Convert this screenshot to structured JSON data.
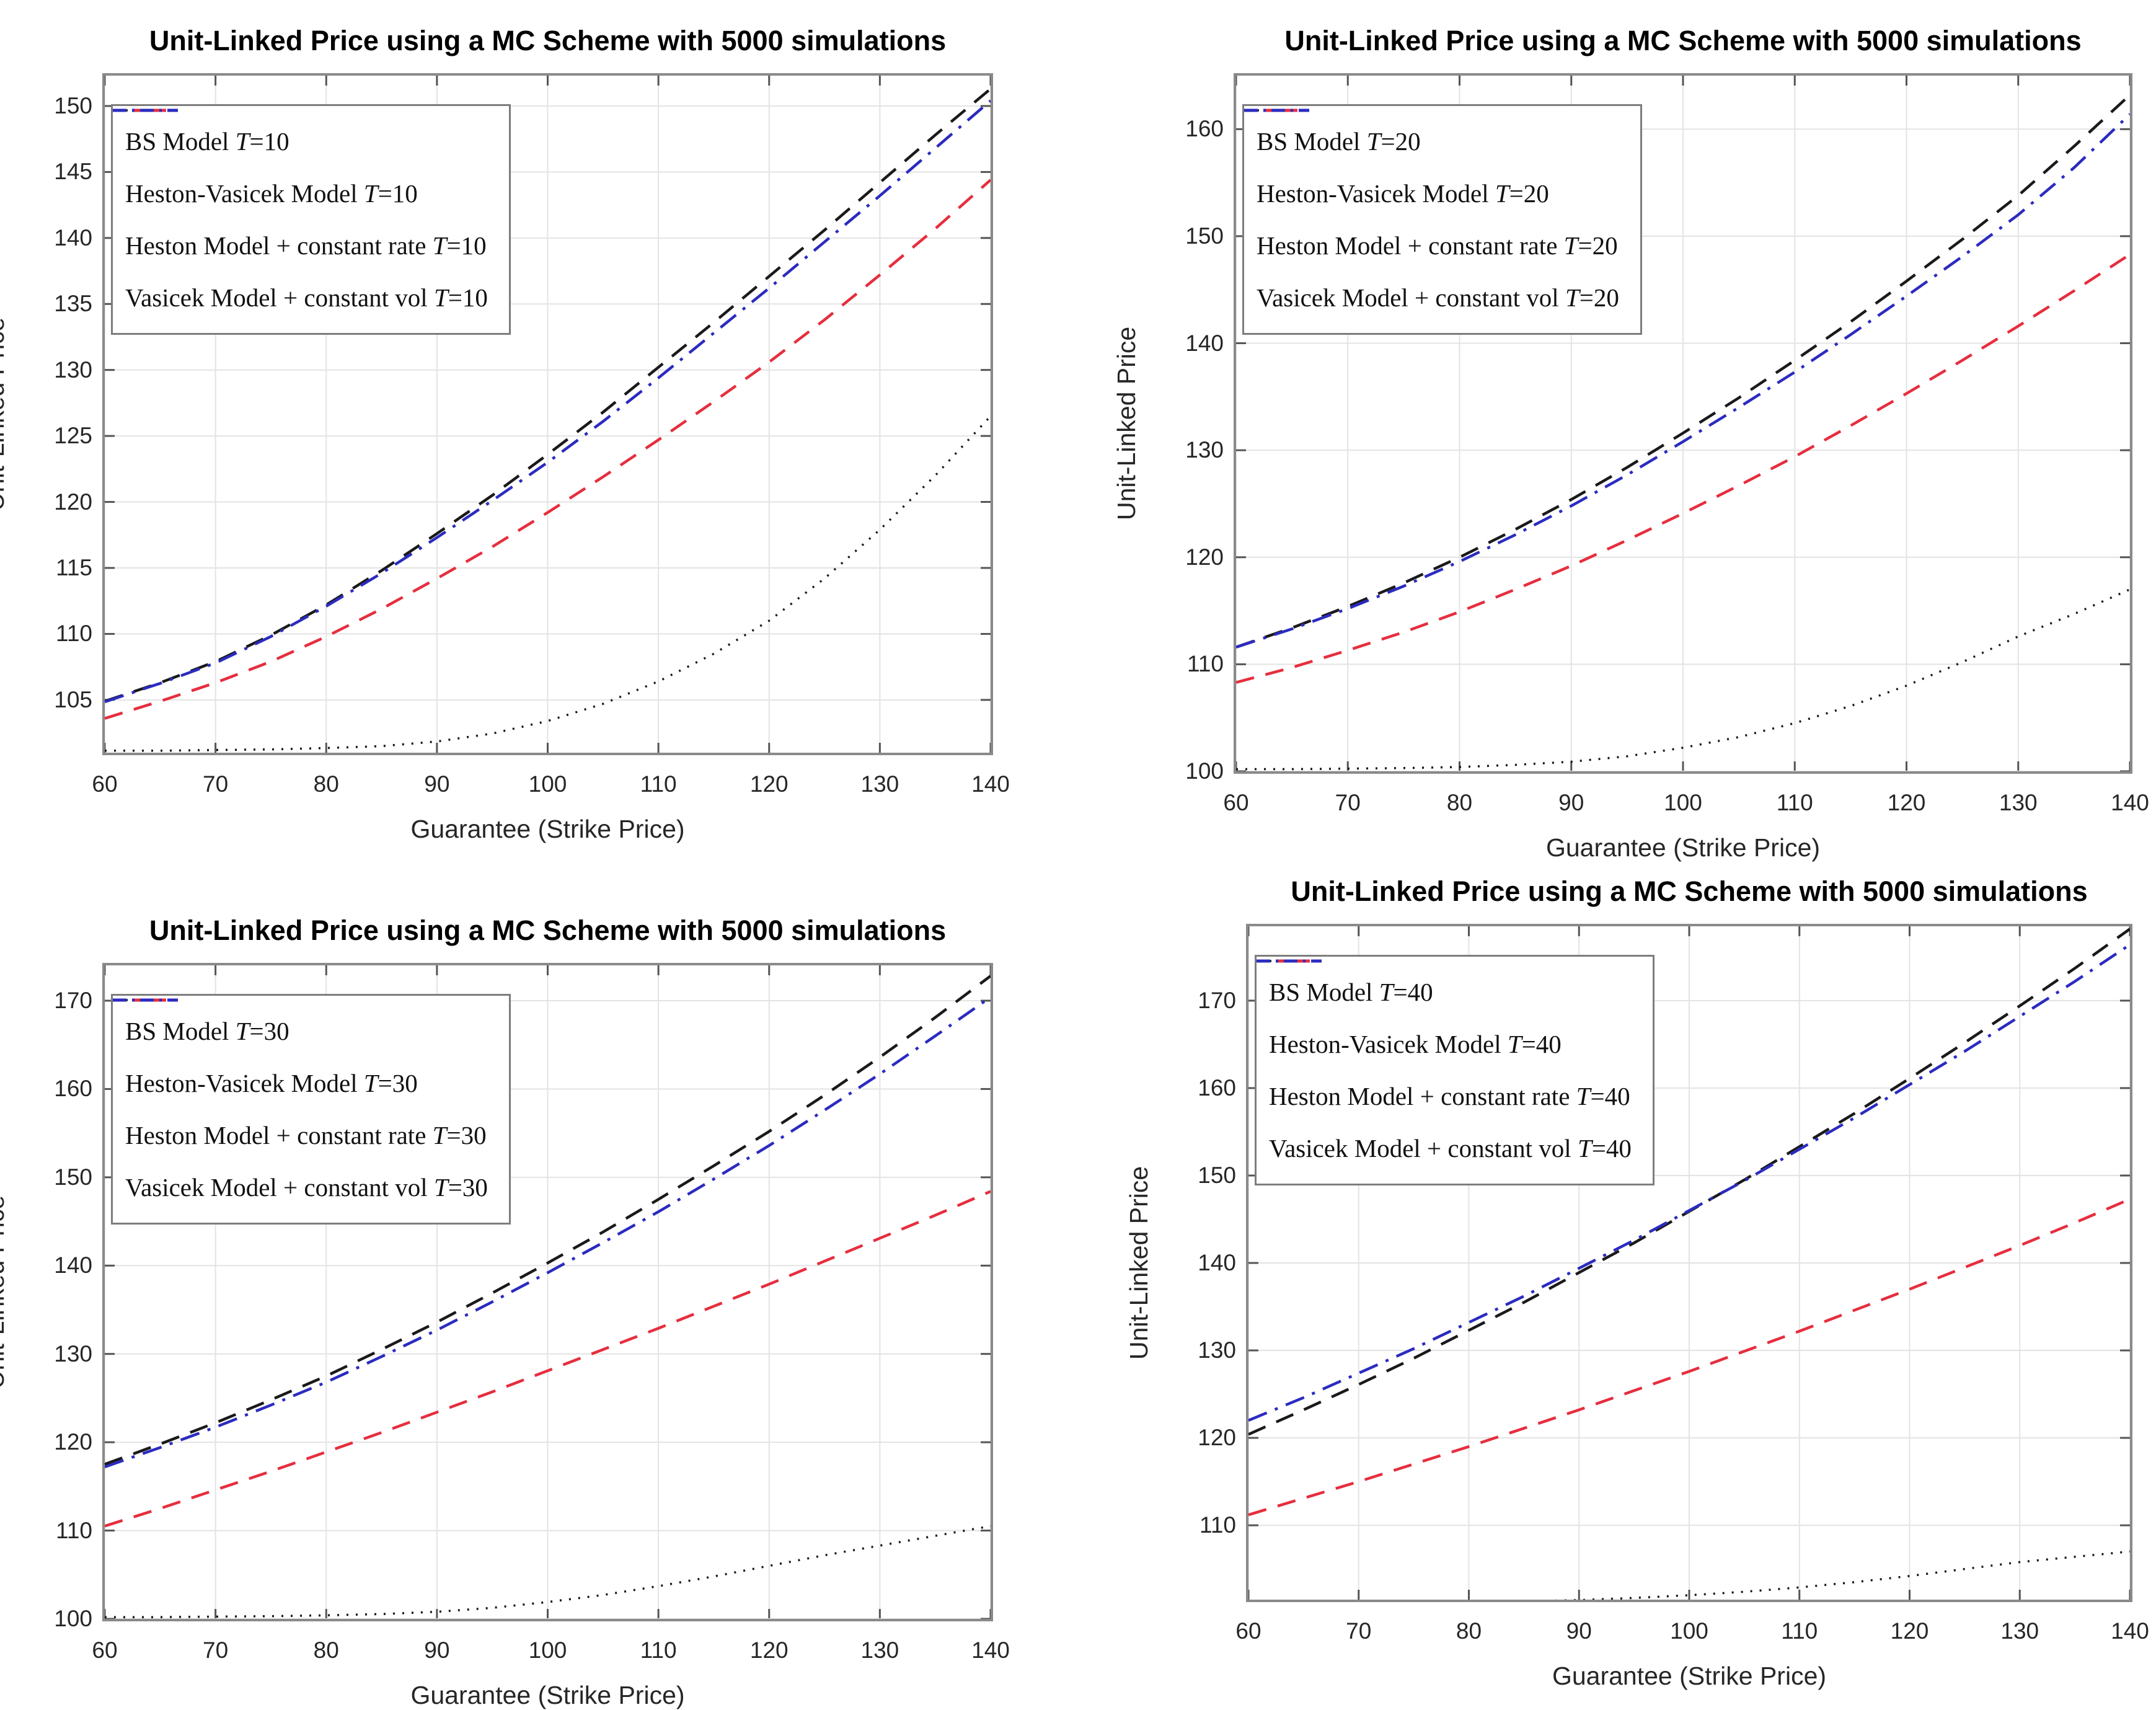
{
  "page": {
    "background": "#ffffff"
  },
  "colors": {
    "bs": "#1a1a1a",
    "heston_vasicek": "#1a1a1a",
    "heston": "#e62e3e",
    "vasicek": "#2b2bc0",
    "grid": "#e3e3e3",
    "axis_box": "#8a8a8a",
    "tick_mark": "#555555",
    "tick_label": "#262626"
  },
  "chart_data": [
    {
      "type": "line",
      "title": "Unit-Linked Price using a MC Scheme with 5000 simulations",
      "xlabel": "Guarantee (Strike Price)",
      "ylabel": "Unit-Linked Price",
      "xlim": [
        60,
        140
      ],
      "ylim": [
        101,
        152.3
      ],
      "xticks": [
        60,
        70,
        80,
        90,
        100,
        110,
        120,
        130,
        140
      ],
      "yticks": [
        105,
        110,
        115,
        120,
        125,
        130,
        135,
        140,
        145,
        150
      ],
      "grid": true,
      "legend_position": "top-left",
      "x": [
        60,
        65,
        70,
        75,
        80,
        85,
        90,
        95,
        100,
        105,
        110,
        115,
        120,
        125,
        130,
        135,
        140
      ],
      "series": [
        {
          "name": "BS Model T=10",
          "style": "dotted",
          "color_key": "bs",
          "values": [
            101.15,
            101.15,
            101.2,
            101.25,
            101.35,
            101.5,
            101.85,
            102.45,
            103.4,
            104.7,
            106.4,
            108.5,
            111.0,
            114.2,
            117.9,
            122.0,
            126.5
          ]
        },
        {
          "name": "Heston-Vasicek Model T=10",
          "style": "dashed",
          "color_key": "heston_vasicek",
          "values": [
            104.9,
            106.3,
            107.9,
            109.9,
            112.2,
            114.8,
            117.6,
            120.5,
            123.6,
            126.8,
            130.2,
            133.6,
            137.1,
            140.6,
            144.2,
            147.8,
            151.3
          ]
        },
        {
          "name": "Heston Model + constant rate T=10",
          "style": "dashed",
          "color_key": "heston",
          "values": [
            103.6,
            104.9,
            106.3,
            107.9,
            109.8,
            111.9,
            114.2,
            116.6,
            119.2,
            121.9,
            124.7,
            127.6,
            130.6,
            133.8,
            137.2,
            140.7,
            144.4
          ]
        },
        {
          "name": "Vasicek Model + constant vol T=10",
          "style": "dashdot",
          "color_key": "vasicek",
          "values": [
            104.85,
            106.25,
            107.8,
            109.8,
            112.1,
            114.6,
            117.3,
            120.1,
            123.0,
            126.1,
            129.4,
            132.8,
            136.2,
            139.7,
            143.2,
            146.8,
            150.4
          ]
        }
      ]
    },
    {
      "type": "line",
      "title": "Unit-Linked Price using a MC Scheme with 5000 simulations",
      "xlabel": "Guarantee (Strike Price)",
      "ylabel": "Unit-Linked Price",
      "xlim": [
        60,
        140
      ],
      "ylim": [
        100,
        165
      ],
      "xticks": [
        60,
        70,
        80,
        90,
        100,
        110,
        120,
        130,
        140
      ],
      "yticks": [
        100,
        110,
        120,
        130,
        140,
        150,
        160
      ],
      "grid": true,
      "legend_position": "top-left",
      "x": [
        60,
        65,
        70,
        75,
        80,
        85,
        90,
        95,
        100,
        105,
        110,
        115,
        120,
        125,
        130,
        135,
        140
      ],
      "series": [
        {
          "name": "BS Model T=20",
          "style": "dotted",
          "color_key": "bs",
          "values": [
            100.2,
            100.2,
            100.25,
            100.3,
            100.4,
            100.6,
            100.9,
            101.4,
            102.2,
            103.2,
            104.5,
            106.1,
            108.0,
            110.2,
            112.6,
            114.7,
            117.0
          ]
        },
        {
          "name": "Heston-Vasicek Model T=20",
          "style": "dashed",
          "color_key": "heston_vasicek",
          "values": [
            111.6,
            113.4,
            115.4,
            117.6,
            120.0,
            122.6,
            125.4,
            128.4,
            131.6,
            134.9,
            138.4,
            142.0,
            145.8,
            149.7,
            153.8,
            158.4,
            163.2
          ]
        },
        {
          "name": "Heston Model + constant rate T=20",
          "style": "dashed",
          "color_key": "heston",
          "values": [
            108.3,
            109.7,
            111.3,
            113.0,
            114.9,
            117.0,
            119.2,
            121.6,
            124.1,
            126.7,
            129.4,
            132.3,
            135.3,
            138.4,
            141.6,
            144.9,
            148.3
          ]
        },
        {
          "name": "Vasicek Model + constant vol T=20",
          "style": "dashdot",
          "color_key": "vasicek",
          "values": [
            111.6,
            113.3,
            115.2,
            117.3,
            119.6,
            122.1,
            124.8,
            127.7,
            130.8,
            134.0,
            137.3,
            140.8,
            144.4,
            148.1,
            152.0,
            156.4,
            161.4
          ]
        }
      ]
    },
    {
      "type": "line",
      "title": "Unit-Linked Price using a MC Scheme with 5000 simulations",
      "xlabel": "Guarantee (Strike Price)",
      "ylabel": "Unit-Linked Price",
      "xlim": [
        60,
        140
      ],
      "ylim": [
        100,
        174
      ],
      "xticks": [
        60,
        70,
        80,
        90,
        100,
        110,
        120,
        130,
        140
      ],
      "yticks": [
        100,
        110,
        120,
        130,
        140,
        150,
        160,
        170
      ],
      "grid": true,
      "legend_position": "top-left",
      "x": [
        60,
        65,
        70,
        75,
        80,
        85,
        90,
        95,
        100,
        105,
        110,
        115,
        120,
        125,
        130,
        135,
        140
      ],
      "series": [
        {
          "name": "BS Model T=30",
          "style": "dotted",
          "color_key": "bs",
          "values": [
            100.2,
            100.2,
            100.25,
            100.3,
            100.4,
            100.55,
            100.8,
            101.25,
            101.9,
            102.7,
            103.7,
            104.8,
            106.0,
            107.2,
            108.3,
            109.4,
            110.5
          ]
        },
        {
          "name": "Heston-Vasicek Model T=30",
          "style": "dashed",
          "color_key": "heston_vasicek",
          "values": [
            117.5,
            119.8,
            122.2,
            124.8,
            127.5,
            130.5,
            133.6,
            136.9,
            140.3,
            143.8,
            147.5,
            151.3,
            155.2,
            159.3,
            163.6,
            168.1,
            172.8
          ]
        },
        {
          "name": "Heston Model + constant rate T=30",
          "style": "dashed",
          "color_key": "heston",
          "values": [
            110.5,
            112.5,
            114.6,
            116.7,
            118.9,
            121.1,
            123.4,
            125.7,
            128.1,
            130.5,
            132.9,
            135.4,
            137.9,
            140.5,
            143.1,
            145.7,
            148.4
          ]
        },
        {
          "name": "Vasicek Model + constant vol T=30",
          "style": "dashdot",
          "color_key": "vasicek",
          "values": [
            117.2,
            119.4,
            121.7,
            124.2,
            126.8,
            129.7,
            132.7,
            135.9,
            139.2,
            142.6,
            146.1,
            149.8,
            153.6,
            157.6,
            161.7,
            166.0,
            170.4
          ]
        }
      ]
    },
    {
      "type": "line",
      "title": "Unit-Linked Price using a MC Scheme with 5000 simulations",
      "xlabel": "Guarantee (Strike Price)",
      "ylabel": "Unit-Linked Price",
      "xlim": [
        60,
        140
      ],
      "ylim": [
        101.5,
        178.5
      ],
      "xticks": [
        60,
        70,
        80,
        90,
        100,
        110,
        120,
        130,
        140
      ],
      "yticks": [
        110,
        120,
        130,
        140,
        150,
        160,
        170
      ],
      "grid": true,
      "legend_position": "top-left",
      "x": [
        60,
        65,
        70,
        75,
        80,
        85,
        90,
        95,
        100,
        105,
        110,
        115,
        120,
        125,
        130,
        135,
        140
      ],
      "series": [
        {
          "name": "BS Model T=40",
          "style": "dotted",
          "color_key": "bs",
          "values": [
            101.3,
            101.25,
            101.2,
            101.2,
            101.25,
            101.3,
            101.45,
            101.7,
            102.0,
            102.4,
            102.9,
            103.5,
            104.2,
            105.0,
            105.8,
            106.4,
            107.0
          ]
        },
        {
          "name": "Heston-Vasicek Model T=40",
          "style": "dashed",
          "color_key": "heston_vasicek",
          "values": [
            120.4,
            123.2,
            126.1,
            129.1,
            132.3,
            135.5,
            138.9,
            142.3,
            145.9,
            149.5,
            153.3,
            157.1,
            161.1,
            165.2,
            169.4,
            173.7,
            178.2
          ]
        },
        {
          "name": "Heston Model + constant rate T=40",
          "style": "dashed",
          "color_key": "heston",
          "values": [
            111.2,
            113.1,
            115.0,
            117.0,
            119.0,
            121.1,
            123.2,
            125.4,
            127.6,
            129.9,
            132.2,
            134.6,
            137.0,
            139.5,
            142.0,
            144.6,
            147.3
          ]
        },
        {
          "name": "Vasicek Model + constant vol T=40",
          "style": "dashdot",
          "color_key": "vasicek",
          "values": [
            122.0,
            124.6,
            127.4,
            130.2,
            133.2,
            136.2,
            139.4,
            142.6,
            146.0,
            149.4,
            153.0,
            156.6,
            160.4,
            164.2,
            168.2,
            172.2,
            176.4
          ]
        }
      ]
    }
  ]
}
